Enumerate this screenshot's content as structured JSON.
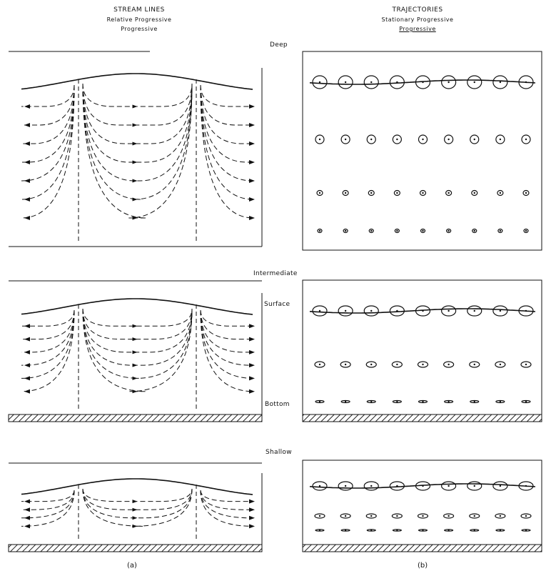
{
  "figure": {
    "left_header": {
      "title": "STREAM LINES",
      "subtitle": "Relative Progressive",
      "subtitle2": "Progressive"
    },
    "right_header": {
      "title": "TRAJECTORIES",
      "subtitle": "Stationary Progressive",
      "subtitle2": "Progressive"
    },
    "depth_labels": {
      "deep": "Deep",
      "intermediate": "Intermediate",
      "surface": "Surface",
      "bottom": "Bottom",
      "shallow": "Shallow"
    },
    "panel_captions": {
      "left": "(a)",
      "right": "(b)"
    }
  },
  "style": {
    "line_color": "#111111",
    "background": "#ffffff",
    "hatch_color": "#222222"
  }
}
